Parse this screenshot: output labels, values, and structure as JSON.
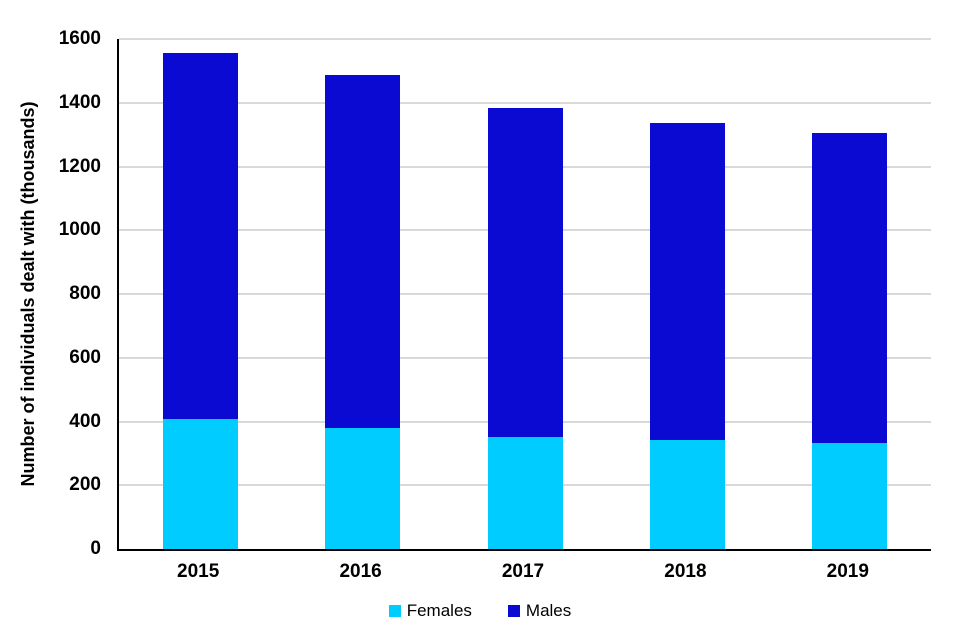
{
  "chart_data": {
    "type": "bar",
    "stacked": true,
    "title": "",
    "categories": [
      "2015",
      "2016",
      "2017",
      "2018",
      "2019"
    ],
    "series": [
      {
        "name": "Females",
        "color": "#00CCFF",
        "values": [
          408,
          380,
          351,
          343,
          333
        ]
      },
      {
        "name": "Males",
        "color": "#0A0AD2",
        "values": [
          1147,
          1108,
          1034,
          995,
          973
        ]
      }
    ],
    "xlabel": "",
    "ylabel": "Number of individuals dealt with (thousands)",
    "ylim": [
      0,
      1600
    ],
    "yticks": [
      0,
      200,
      400,
      600,
      800,
      1000,
      1200,
      1400,
      1600
    ],
    "grid": "horizontal",
    "legend_position": "bottom-center",
    "style": {
      "gridline_color": "#d9d9d9",
      "axis_color": "#000000",
      "text_color": "#000000",
      "background": "#ffffff"
    }
  }
}
